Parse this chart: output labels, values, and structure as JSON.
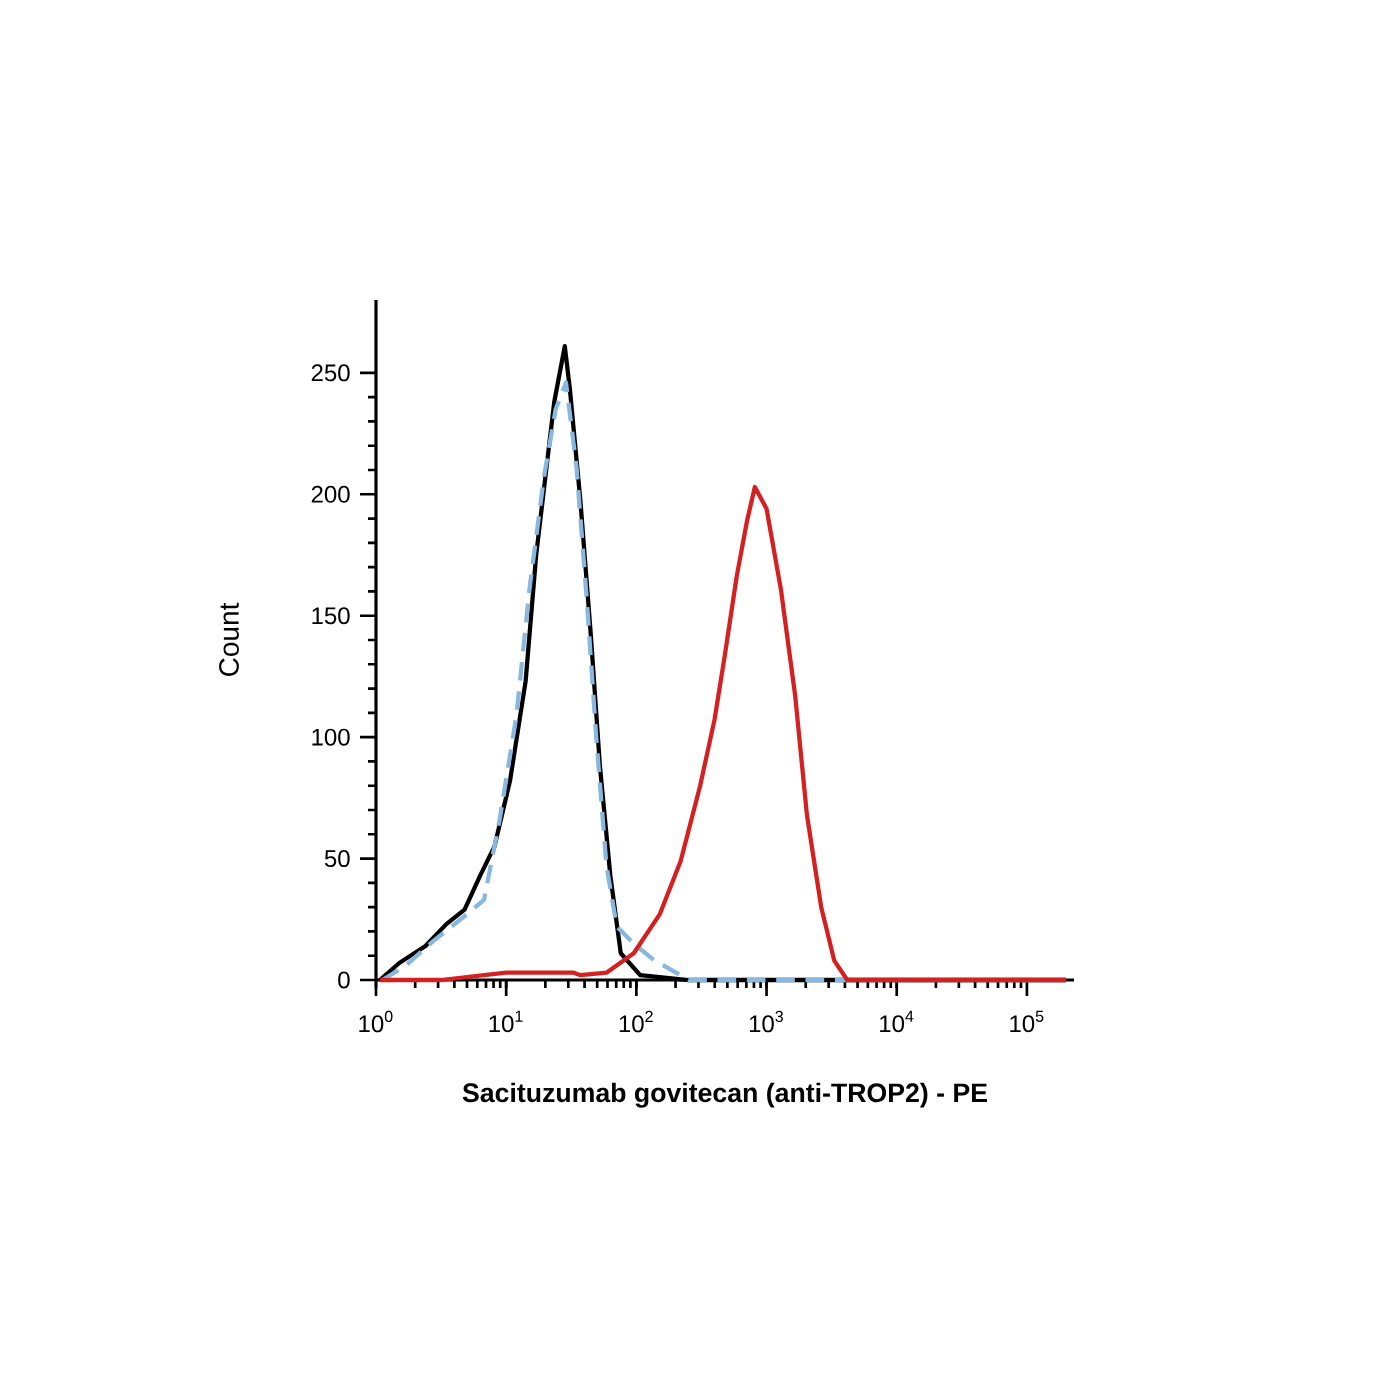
{
  "chart_data": {
    "type": "line",
    "xlabel": "Sacituzumab govitecan (anti-TROP2) - PE",
    "ylabel": "Count",
    "log": "x",
    "xlim": [
      1,
      230000
    ],
    "ylim": [
      0,
      280
    ],
    "xticks": [
      {
        "value": 1,
        "label": "10$^{0}$"
      },
      {
        "value": 10,
        "label": "10$^{1}$"
      },
      {
        "value": 100,
        "label": "10$^{2}$"
      },
      {
        "value": 1000,
        "label": "10$^{3}$"
      },
      {
        "value": 10000,
        "label": "10$^{4}$"
      },
      {
        "value": 100000,
        "label": "10$^{5}$"
      }
    ],
    "yticks": [
      0,
      50,
      100,
      150,
      200,
      250
    ],
    "series": [
      {
        "color": "#000000",
        "line_style": "solid",
        "x": [
          1.07,
          1.51,
          2.4,
          3.47,
          4.79,
          6.31,
          8.13,
          10.7,
          14.1,
          17.0,
          20.4,
          23.4,
          28.2,
          30.9,
          37.2,
          44.7,
          52.5,
          63.1,
          75.9,
          107,
          251,
          200000
        ],
        "values": [
          0,
          7,
          14,
          23,
          29,
          43,
          55,
          82,
          123,
          175,
          211,
          238,
          261,
          243,
          197,
          142,
          88,
          43,
          11,
          2,
          0,
          0
        ]
      },
      {
        "color": "#88b8e0",
        "line_style": "dashed",
        "x": [
          1.12,
          1.7,
          2.75,
          4.47,
          6.76,
          8.91,
          12.0,
          15.1,
          19.5,
          24.0,
          28.8,
          34.7,
          41.7,
          49,
          58.9,
          70.8,
          95.5,
          138,
          219,
          251,
          200000
        ],
        "values": [
          0,
          6,
          16,
          25,
          33,
          66,
          109,
          161,
          207,
          235,
          246,
          211,
          156,
          101,
          47,
          22,
          15,
          8,
          2,
          0,
          0
        ]
      },
      {
        "color": "#d42020",
        "line_style": "solid",
        "x": [
          1.07,
          3.16,
          10,
          33.1,
          37.2,
          58.9,
          95.5,
          151,
          219,
          309,
          398,
          479,
          589,
          708,
          813,
          1000,
          1288,
          1660,
          2042,
          2630,
          3311,
          4169,
          200000
        ],
        "values": [
          0,
          0,
          3,
          3,
          2,
          3,
          11,
          27,
          49,
          80,
          107,
          134,
          166,
          189,
          203,
          194,
          161,
          117,
          68,
          30,
          8,
          0,
          0
        ]
      }
    ]
  }
}
